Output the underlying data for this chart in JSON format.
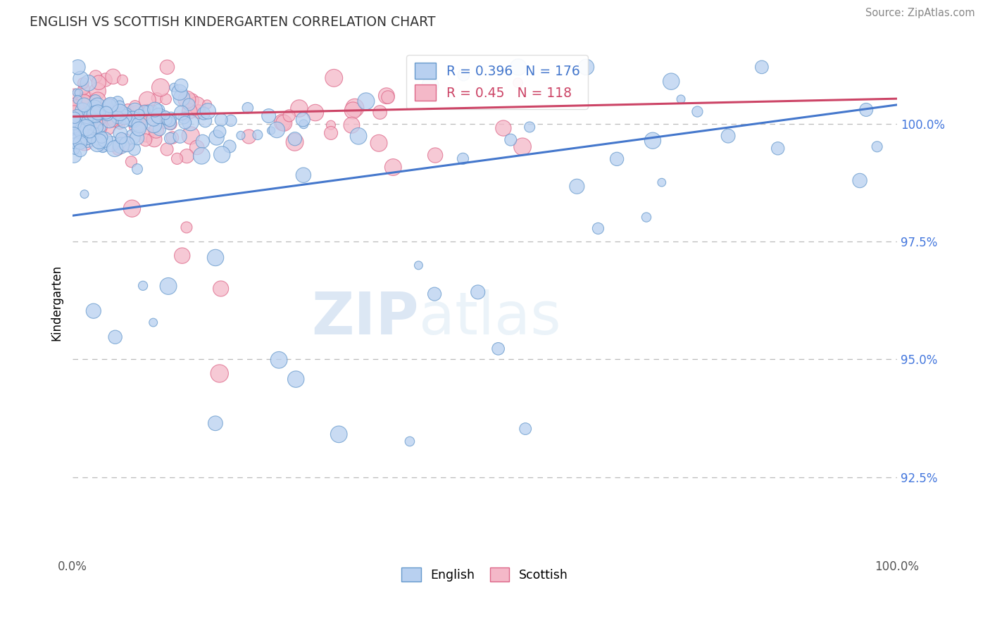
{
  "title": "ENGLISH VS SCOTTISH KINDERGARTEN CORRELATION CHART",
  "source_text": "Source: ZipAtlas.com",
  "ylabel": "Kindergarten",
  "xlim": [
    0.0,
    1.0
  ],
  "ylim": [
    90.8,
    101.6
  ],
  "yticks": [
    92.5,
    95.0,
    97.5,
    100.0
  ],
  "ytick_labels": [
    "92.5%",
    "95.0%",
    "97.5%",
    "100.0%"
  ],
  "xticks": [
    0.0,
    0.25,
    0.5,
    0.75,
    1.0
  ],
  "xtick_labels": [
    "0.0%",
    "",
    "",
    "",
    "100.0%"
  ],
  "english_fill": "#b8d0f0",
  "english_edge": "#6699cc",
  "scottish_fill": "#f4b8c8",
  "scottish_edge": "#dd6688",
  "trend_english": "#4477cc",
  "trend_scottish": "#cc4466",
  "R_english": 0.396,
  "N_english": 176,
  "R_scottish": 0.45,
  "N_scottish": 118,
  "bg": "#ffffff",
  "grid_color": "#bbbbbb",
  "watermark_ZIP": "ZIP",
  "watermark_atlas": "atlas",
  "legend_english": "English",
  "legend_scottish": "Scottish",
  "title_color": "#333333",
  "ytick_color": "#4477dd",
  "source_color": "#888888"
}
